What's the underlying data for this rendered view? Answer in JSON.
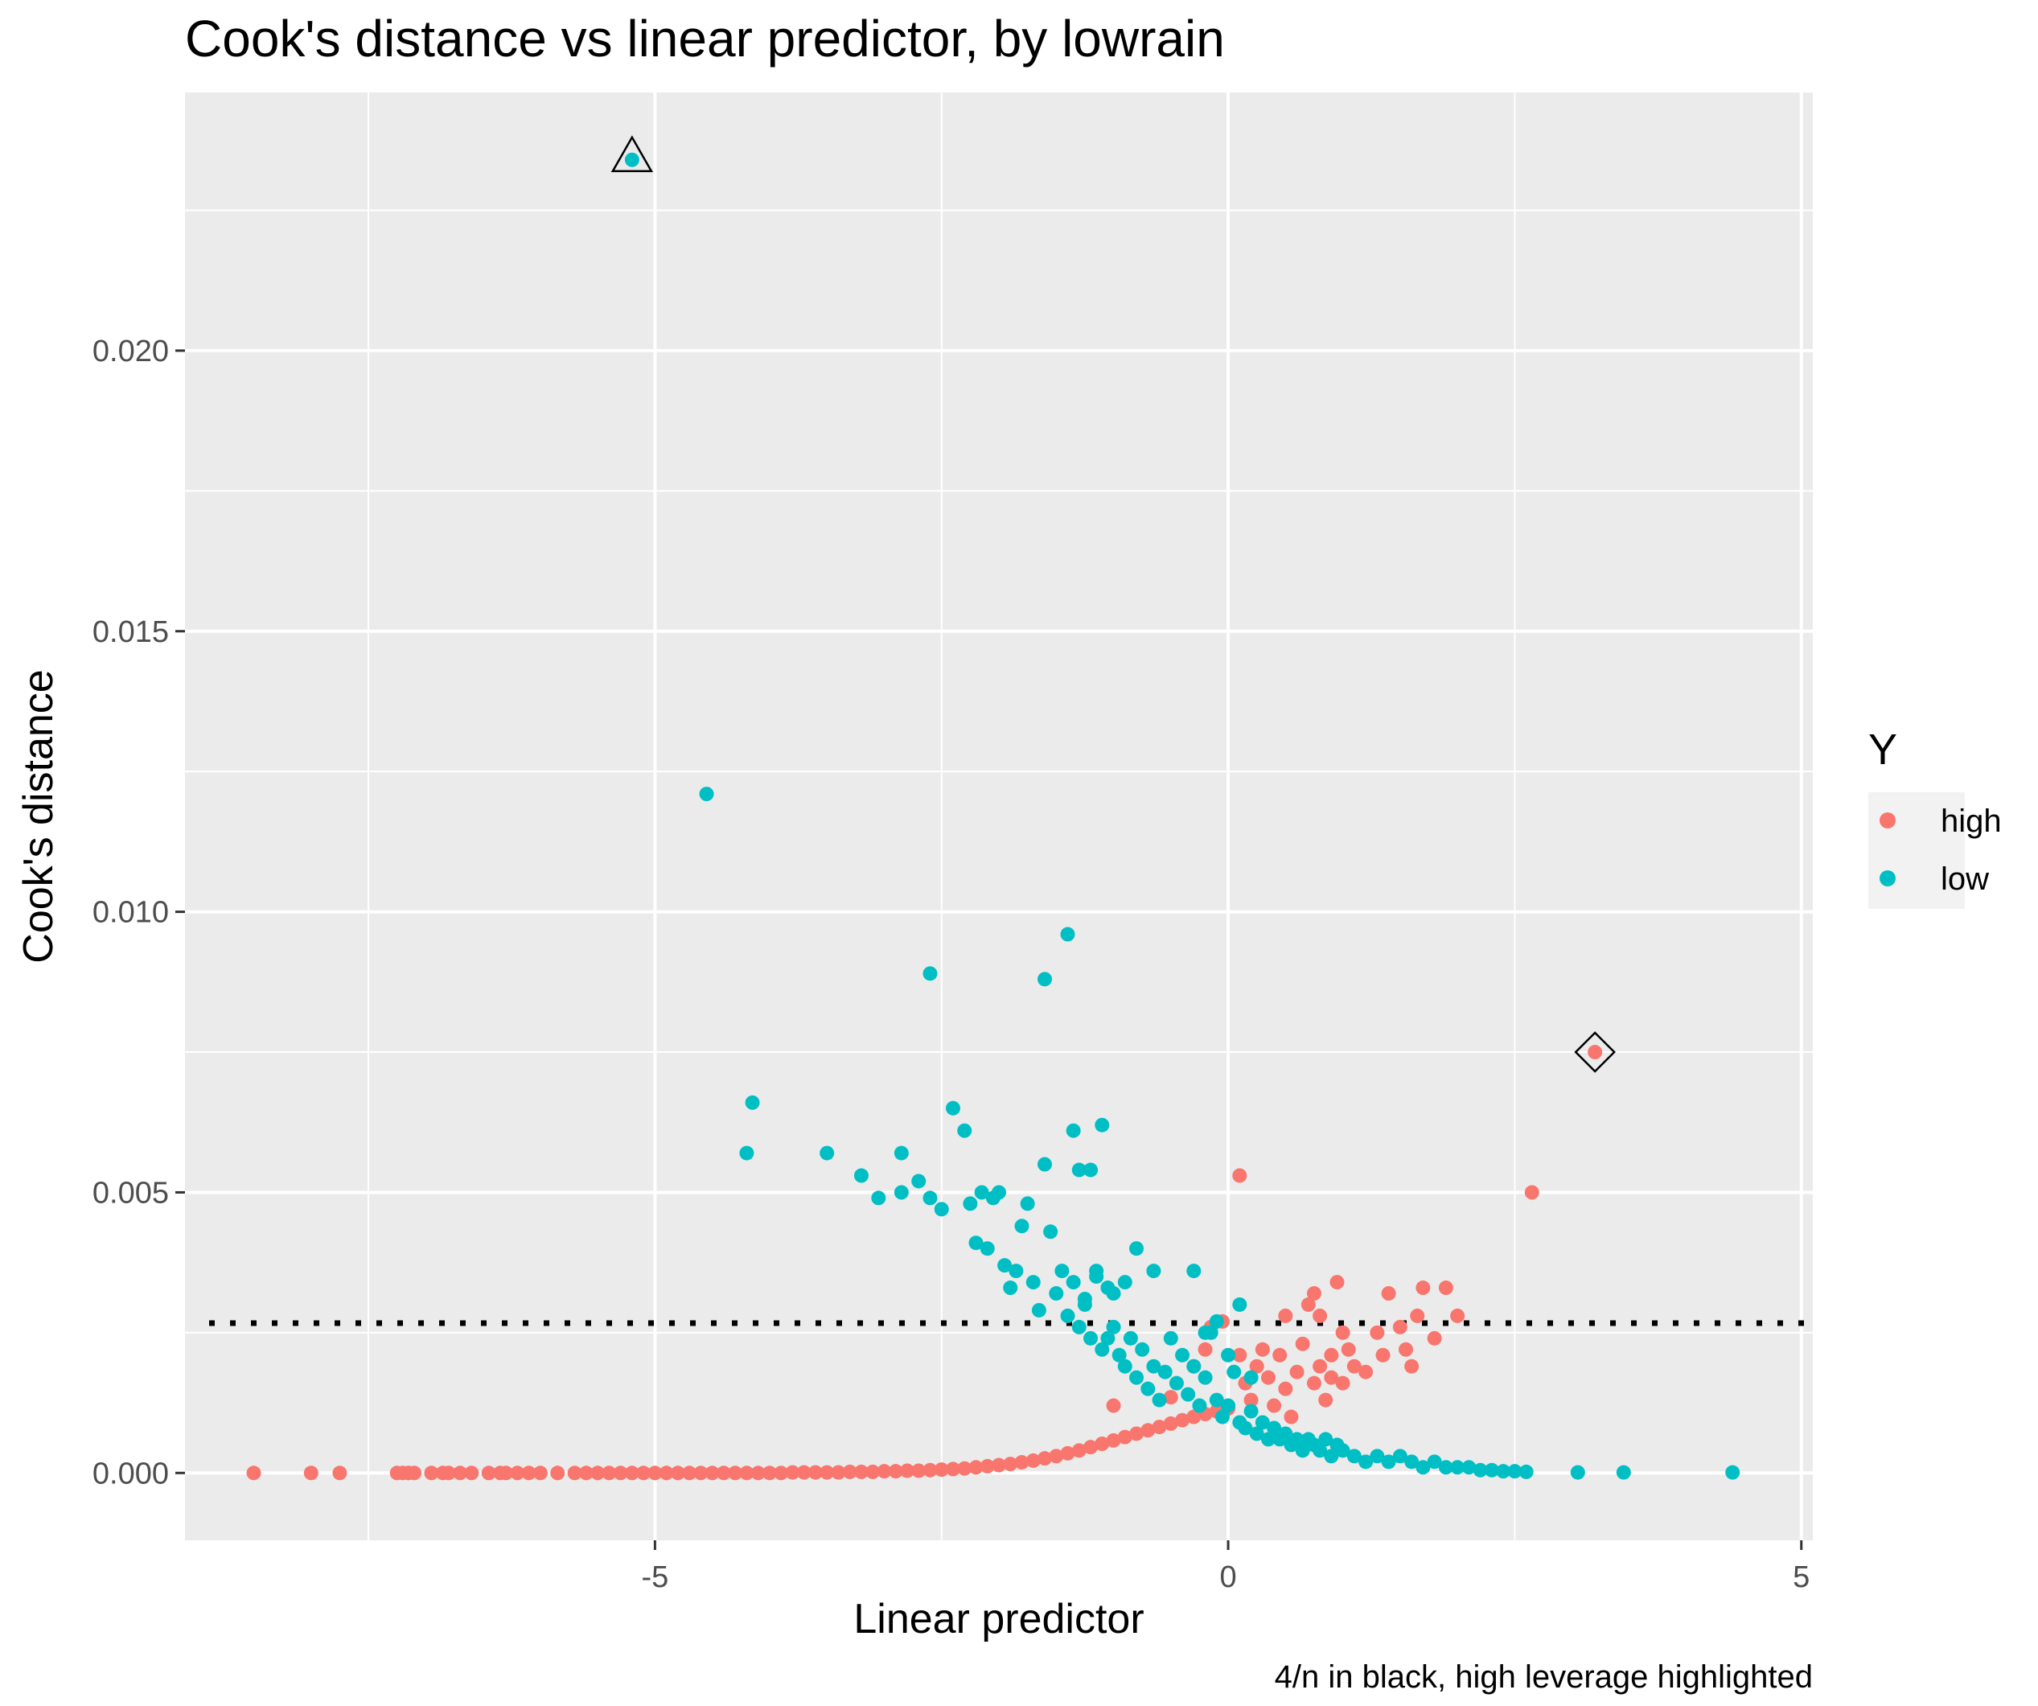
{
  "chart_data": {
    "type": "scatter",
    "title": "Cook's distance vs linear predictor, by lowrain",
    "xlabel": "Linear predictor",
    "ylabel": "Cook's distance",
    "caption": "4/n in black, high leverage highlighted",
    "xlim": [
      -9.1,
      5.1
    ],
    "ylim": [
      -0.0012,
      0.0246
    ],
    "x_ticks": [
      -5,
      0,
      5
    ],
    "x_tick_labels": [
      "-5",
      "0",
      "5"
    ],
    "y_ticks": [
      0.0,
      0.005,
      0.01,
      0.015,
      0.02
    ],
    "y_tick_labels": [
      "0.000",
      "0.005",
      "0.010",
      "0.015",
      "0.020"
    ],
    "grid": true,
    "legend": {
      "title": "Y",
      "position": "right",
      "entries": [
        "high",
        "low"
      ]
    },
    "colors": {
      "high": "#F8766D",
      "low": "#00BFC4",
      "panel": "#EBEBEB",
      "grid": "#FFFFFF",
      "reference": "#000000"
    },
    "reference_line": {
      "y": 0.00267,
      "style": "dotted"
    },
    "highlights": [
      {
        "series": "low",
        "x": -5.2,
        "y": 0.0234,
        "marker": "triangle-open"
      },
      {
        "series": "high",
        "x": 3.2,
        "y": 0.0075,
        "marker": "diamond-open"
      }
    ],
    "series": [
      {
        "name": "high",
        "points": [
          [
            -8.5,
            0.0
          ],
          [
            -8.0,
            0.0
          ],
          [
            -7.75,
            0.0
          ],
          [
            -7.25,
            0.0
          ],
          [
            -7.2,
            0.0
          ],
          [
            -7.15,
            0.0
          ],
          [
            -7.1,
            0.0
          ],
          [
            -6.95,
            0.0
          ],
          [
            -6.85,
            0.0
          ],
          [
            -6.8,
            0.0
          ],
          [
            -6.7,
            0.0
          ],
          [
            -6.6,
            0.0
          ],
          [
            -6.45,
            0.0
          ],
          [
            -6.35,
            0.0
          ],
          [
            -6.3,
            0.0
          ],
          [
            -6.2,
            0.0
          ],
          [
            -6.1,
            0.0
          ],
          [
            -6.0,
            0.0
          ],
          [
            -5.85,
            0.0
          ],
          [
            -5.7,
            0.0
          ],
          [
            -5.6,
            0.0
          ],
          [
            -5.5,
            0.0
          ],
          [
            -5.4,
            0.0
          ],
          [
            -5.3,
            0.0
          ],
          [
            -5.2,
            0.0
          ],
          [
            -5.1,
            0.0
          ],
          [
            -5.0,
            0.0
          ],
          [
            -4.9,
            0.0
          ],
          [
            -4.8,
            0.0
          ],
          [
            -4.7,
            0.0
          ],
          [
            -4.6,
            0.0
          ],
          [
            -4.5,
            0.0
          ],
          [
            -4.4,
            0.0
          ],
          [
            -4.3,
            0.0
          ],
          [
            -4.2,
            0.0
          ],
          [
            -4.1,
            0.0
          ],
          [
            -4.0,
            0.0
          ],
          [
            -3.9,
            0.0
          ],
          [
            -3.8,
            1e-05
          ],
          [
            -3.7,
            1e-05
          ],
          [
            -3.6,
            1e-05
          ],
          [
            -3.5,
            1e-05
          ],
          [
            -3.4,
            1e-05
          ],
          [
            -3.3,
            2e-05
          ],
          [
            -3.2,
            2e-05
          ],
          [
            -3.1,
            2e-05
          ],
          [
            -3.0,
            3e-05
          ],
          [
            -2.9,
            3e-05
          ],
          [
            -2.8,
            4e-05
          ],
          [
            -2.7,
            4e-05
          ],
          [
            -2.6,
            5e-05
          ],
          [
            -2.5,
            6e-05
          ],
          [
            -2.4,
            7e-05
          ],
          [
            -2.3,
            8e-05
          ],
          [
            -2.2,
            0.0001
          ],
          [
            -2.1,
            0.00012
          ],
          [
            -2.0,
            0.00014
          ],
          [
            -1.9,
            0.00016
          ],
          [
            -1.8,
            0.00019
          ],
          [
            -1.7,
            0.00022
          ],
          [
            -1.6,
            0.00026
          ],
          [
            -1.5,
            0.0003
          ],
          [
            -1.4,
            0.00035
          ],
          [
            -1.3,
            0.0004
          ],
          [
            -1.2,
            0.00046
          ],
          [
            -1.1,
            0.00052
          ],
          [
            -1.0,
            0.00058
          ],
          [
            -0.9,
            0.00064
          ],
          [
            -0.8,
            0.0007
          ],
          [
            -0.7,
            0.00076
          ],
          [
            -0.6,
            0.00082
          ],
          [
            -0.5,
            0.00088
          ],
          [
            -0.4,
            0.00094
          ],
          [
            -0.3,
            0.001
          ],
          [
            -0.2,
            0.00105
          ],
          [
            -0.1,
            0.0011
          ],
          [
            0.0,
            0.00115
          ],
          [
            -1.0,
            0.0012
          ],
          [
            -0.5,
            0.00135
          ],
          [
            -0.3,
            0.0019
          ],
          [
            -0.2,
            0.0022
          ],
          [
            -0.15,
            0.0026
          ],
          [
            -0.05,
            0.0027
          ],
          [
            0.1,
            0.0053
          ],
          [
            0.1,
            0.0021
          ],
          [
            0.15,
            0.0016
          ],
          [
            0.2,
            0.0013
          ],
          [
            0.25,
            0.0019
          ],
          [
            0.3,
            0.0022
          ],
          [
            0.35,
            0.0017
          ],
          [
            0.4,
            0.0012
          ],
          [
            0.45,
            0.0021
          ],
          [
            0.5,
            0.0028
          ],
          [
            0.5,
            0.0015
          ],
          [
            0.55,
            0.001
          ],
          [
            0.6,
            0.0018
          ],
          [
            0.65,
            0.0023
          ],
          [
            0.7,
            0.003
          ],
          [
            0.75,
            0.0032
          ],
          [
            0.75,
            0.0016
          ],
          [
            0.8,
            0.0028
          ],
          [
            0.8,
            0.0019
          ],
          [
            0.85,
            0.0013
          ],
          [
            0.9,
            0.0021
          ],
          [
            0.9,
            0.0017
          ],
          [
            0.95,
            0.0034
          ],
          [
            1.0,
            0.0025
          ],
          [
            1.0,
            0.0016
          ],
          [
            1.05,
            0.0022
          ],
          [
            1.1,
            0.0019
          ],
          [
            1.2,
            0.0018
          ],
          [
            1.3,
            0.0025
          ],
          [
            1.35,
            0.0021
          ],
          [
            1.4,
            0.0032
          ],
          [
            1.5,
            0.0026
          ],
          [
            1.55,
            0.0022
          ],
          [
            1.6,
            0.0019
          ],
          [
            1.65,
            0.0028
          ],
          [
            1.7,
            0.0033
          ],
          [
            1.8,
            0.0024
          ],
          [
            1.9,
            0.0033
          ],
          [
            2.0,
            0.0028
          ],
          [
            2.65,
            0.005
          ],
          [
            3.2,
            0.0075
          ]
        ]
      },
      {
        "name": "low",
        "points": [
          [
            -5.2,
            0.0234
          ],
          [
            -4.55,
            0.0121
          ],
          [
            -4.15,
            0.0066
          ],
          [
            -4.2,
            0.0057
          ],
          [
            -3.5,
            0.0057
          ],
          [
            -3.2,
            0.0053
          ],
          [
            -3.05,
            0.0049
          ],
          [
            -2.85,
            0.0057
          ],
          [
            -2.85,
            0.005
          ],
          [
            -2.7,
            0.0052
          ],
          [
            -2.6,
            0.0049
          ],
          [
            -2.5,
            0.0047
          ],
          [
            -2.4,
            0.0065
          ],
          [
            -2.3,
            0.0061
          ],
          [
            -2.25,
            0.0048
          ],
          [
            -2.2,
            0.0041
          ],
          [
            -2.15,
            0.005
          ],
          [
            -2.1,
            0.004
          ],
          [
            -2.05,
            0.0049
          ],
          [
            -2.0,
            0.005
          ],
          [
            -1.95,
            0.0037
          ],
          [
            -1.9,
            0.0033
          ],
          [
            -1.85,
            0.0036
          ],
          [
            -1.8,
            0.0044
          ],
          [
            -1.75,
            0.0048
          ],
          [
            -1.7,
            0.0034
          ],
          [
            -1.65,
            0.0029
          ],
          [
            -1.6,
            0.0055
          ],
          [
            -1.55,
            0.0043
          ],
          [
            -1.5,
            0.0032
          ],
          [
            -1.45,
            0.0036
          ],
          [
            -1.4,
            0.0028
          ],
          [
            -1.35,
            0.0034
          ],
          [
            -1.3,
            0.0026
          ],
          [
            -1.25,
            0.003
          ],
          [
            -1.2,
            0.0024
          ],
          [
            -1.15,
            0.0036
          ],
          [
            -1.1,
            0.0022
          ],
          [
            -1.05,
            0.0033
          ],
          [
            -1.0,
            0.0026
          ],
          [
            -0.95,
            0.0021
          ],
          [
            -0.9,
            0.0019
          ],
          [
            -0.85,
            0.0024
          ],
          [
            -0.8,
            0.0017
          ],
          [
            -0.75,
            0.0022
          ],
          [
            -0.7,
            0.0015
          ],
          [
            -0.65,
            0.0019
          ],
          [
            -0.6,
            0.0013
          ],
          [
            -0.55,
            0.0018
          ],
          [
            -0.5,
            0.0024
          ],
          [
            -0.45,
            0.0016
          ],
          [
            -0.4,
            0.0021
          ],
          [
            -0.35,
            0.0014
          ],
          [
            -0.3,
            0.0019
          ],
          [
            -0.25,
            0.0012
          ],
          [
            -0.2,
            0.0017
          ],
          [
            -0.15,
            0.0025
          ],
          [
            -0.1,
            0.0013
          ],
          [
            -0.05,
            0.001
          ],
          [
            0.0,
            0.0012
          ],
          [
            0.05,
            0.0018
          ],
          [
            0.1,
            0.0009
          ],
          [
            0.15,
            0.0008
          ],
          [
            0.2,
            0.0011
          ],
          [
            0.25,
            0.0007
          ],
          [
            0.3,
            0.0009
          ],
          [
            0.35,
            0.0006
          ],
          [
            0.4,
            0.0008
          ],
          [
            0.45,
            0.0006
          ],
          [
            0.5,
            0.0007
          ],
          [
            0.55,
            0.0005
          ],
          [
            0.6,
            0.0006
          ],
          [
            0.65,
            0.0004
          ],
          [
            0.7,
            0.0006
          ],
          [
            0.75,
            0.0005
          ],
          [
            0.8,
            0.0004
          ],
          [
            0.85,
            0.0006
          ],
          [
            0.9,
            0.0003
          ],
          [
            0.95,
            0.0005
          ],
          [
            1.0,
            0.0004
          ],
          [
            1.1,
            0.0003
          ],
          [
            1.2,
            0.0002
          ],
          [
            1.3,
            0.0003
          ],
          [
            1.4,
            0.0002
          ],
          [
            1.5,
            0.0003
          ],
          [
            1.6,
            0.0002
          ],
          [
            1.7,
            0.0001
          ],
          [
            1.8,
            0.0002
          ],
          [
            1.9,
            0.0001
          ],
          [
            2.0,
            0.0001
          ],
          [
            2.1,
            0.0001
          ],
          [
            2.2,
            5e-05
          ],
          [
            2.3,
            5e-05
          ],
          [
            2.4,
            3e-05
          ],
          [
            2.5,
            3e-05
          ],
          [
            2.6,
            2e-05
          ],
          [
            3.05,
            1e-05
          ],
          [
            3.45,
            1e-05
          ],
          [
            4.4,
            1e-05
          ],
          [
            -2.6,
            0.0089
          ],
          [
            -1.6,
            0.0088
          ],
          [
            -1.4,
            0.0096
          ],
          [
            -1.35,
            0.0061
          ],
          [
            -1.1,
            0.0062
          ],
          [
            -1.2,
            0.0054
          ],
          [
            -1.3,
            0.0054
          ],
          [
            -0.8,
            0.004
          ],
          [
            -0.65,
            0.0036
          ],
          [
            -0.3,
            0.0036
          ],
          [
            -0.1,
            0.0027
          ],
          [
            0.1,
            0.003
          ],
          [
            -0.2,
            0.0025
          ],
          [
            0.0,
            0.0021
          ],
          [
            0.2,
            0.0017
          ],
          [
            -0.9,
            0.0034
          ],
          [
            -1.25,
            0.0031
          ],
          [
            -1.15,
            0.0035
          ],
          [
            -1.05,
            0.0024
          ],
          [
            -1.0,
            0.0032
          ]
        ]
      }
    ]
  }
}
